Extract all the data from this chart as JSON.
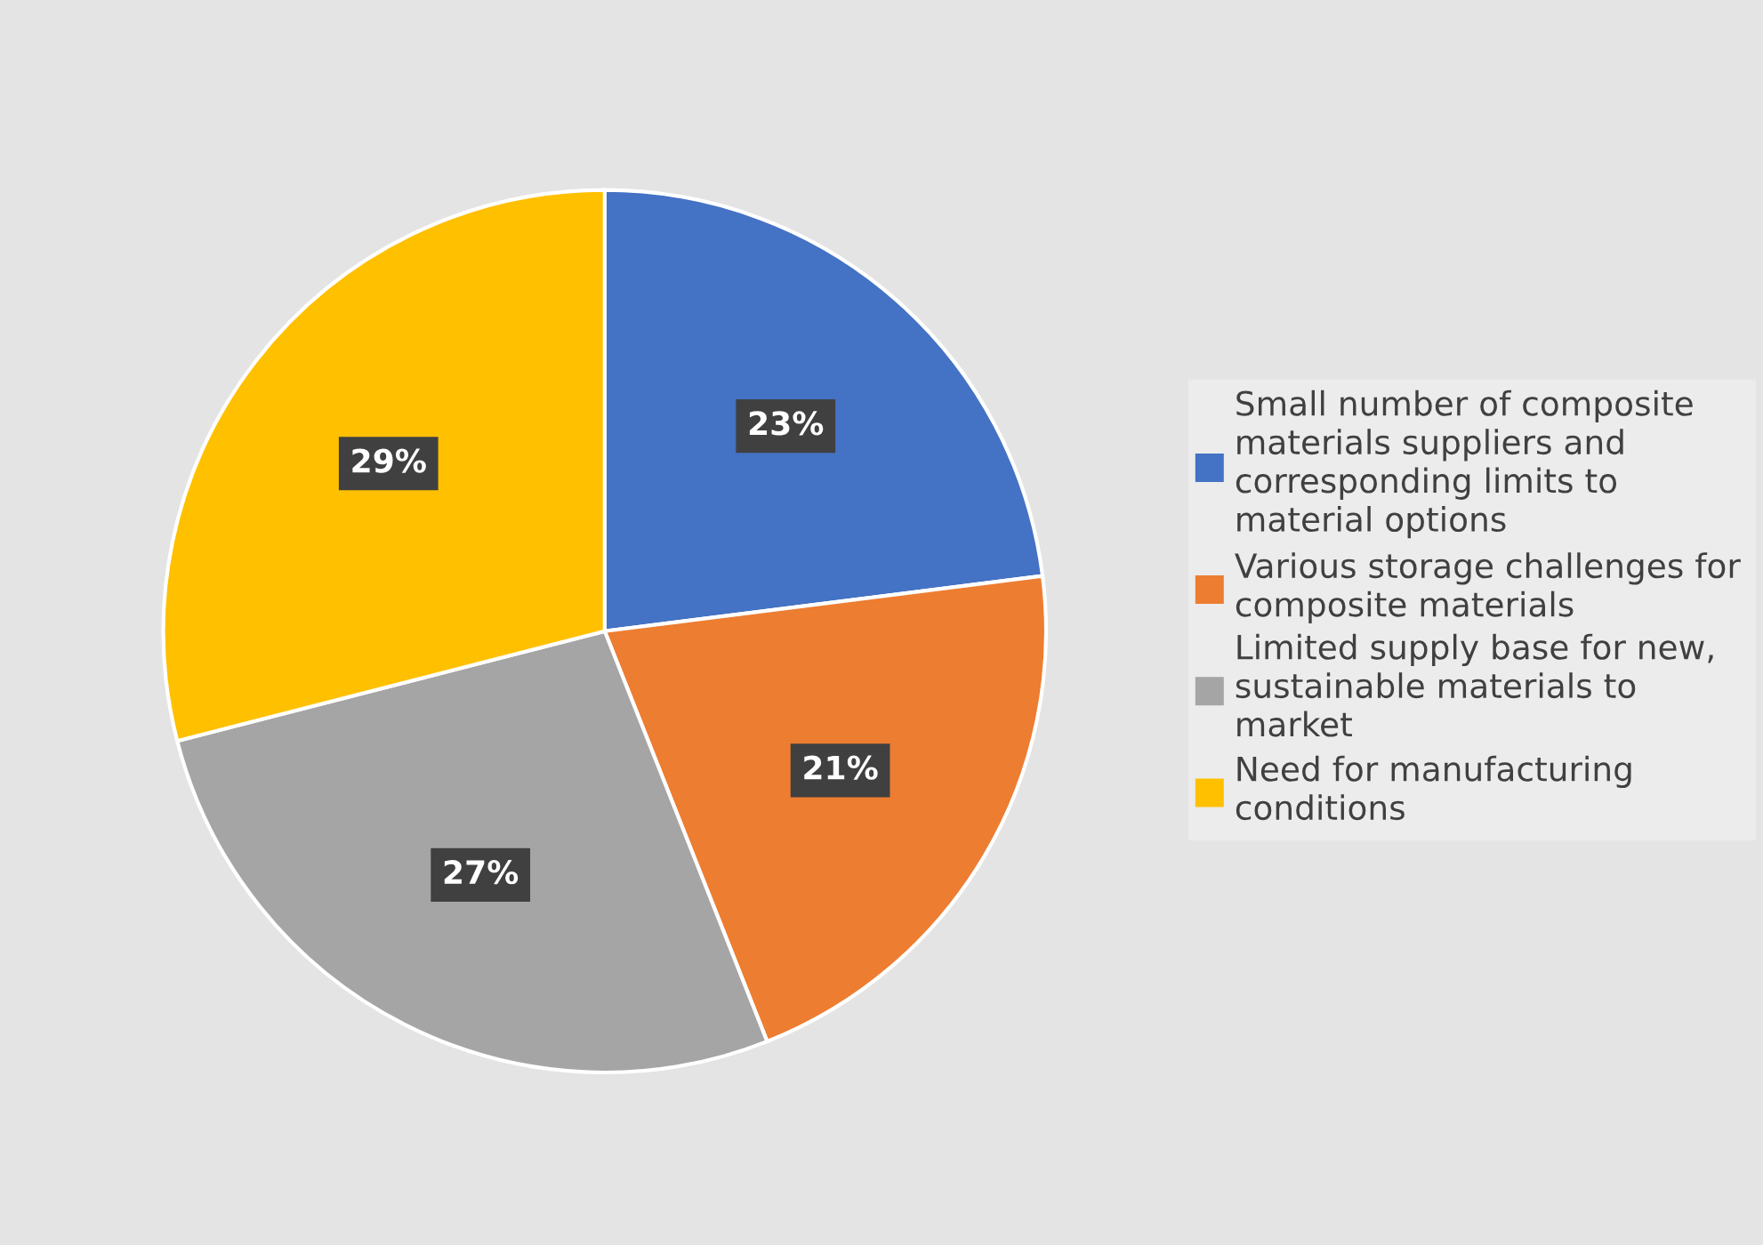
{
  "chart_data": {
    "type": "pie",
    "categories": [
      "Small number of composite materials suppliers and corresponding limits to material options",
      "Various storage challenges for composite materials",
      "Limited supply base for new, sustainable materials to market",
      "Need for manufacturing conditions"
    ],
    "values": [
      23,
      21,
      27,
      29
    ],
    "colors": [
      "#4472c4",
      "#ed7d31",
      "#a5a5a5",
      "#ffc000"
    ],
    "value_labels": [
      "23%",
      "21%",
      "27%",
      "29%"
    ],
    "legend": "right"
  }
}
